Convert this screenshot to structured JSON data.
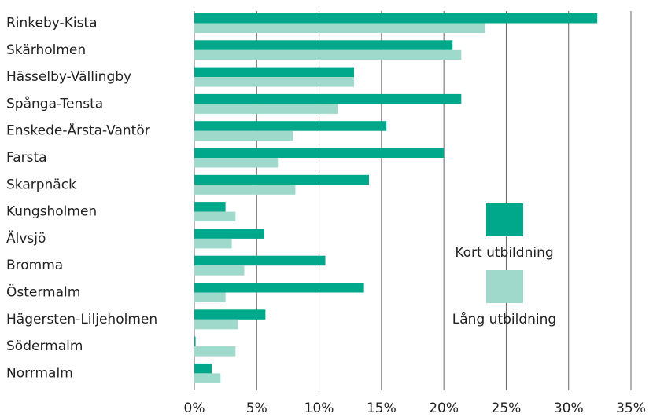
{
  "chart_data": {
    "type": "bar",
    "orientation": "horizontal",
    "categories": [
      "Rinkeby-Kista",
      "Skärholmen",
      "Hässelby-Vällingby",
      "Spånga-Tensta",
      "Enskede-Årsta-Vantör",
      "Farsta",
      "Skarpnäck",
      "Kungsholmen",
      "Älvsjö",
      "Bromma",
      "Östermalm",
      "Hägersten-Liljeholmen",
      "Södermalm",
      "Norrmalm"
    ],
    "series": [
      {
        "name": "Kort utbildning",
        "color": "#00a88b",
        "values": [
          32.3,
          20.7,
          12.8,
          21.4,
          15.4,
          20.0,
          14.0,
          2.5,
          5.6,
          10.5,
          13.6,
          5.7,
          0.1,
          1.4
        ]
      },
      {
        "name": "Lång utbildning",
        "color": "#9fd9cc",
        "values": [
          23.3,
          21.4,
          12.8,
          11.5,
          7.9,
          6.7,
          8.1,
          3.3,
          3.0,
          4.0,
          2.5,
          3.5,
          3.3,
          2.1
        ]
      }
    ],
    "xlim": [
      0,
      35
    ],
    "xticks": [
      {
        "value": 0,
        "label": "0%"
      },
      {
        "value": 5,
        "label": "5%"
      },
      {
        "value": 10,
        "label": "10%"
      },
      {
        "value": 15,
        "label": "15%"
      },
      {
        "value": 20,
        "label": "20%"
      },
      {
        "value": 25,
        "label": "25%"
      },
      {
        "value": 30,
        "label": "30%"
      },
      {
        "value": 35,
        "label": "35%"
      }
    ],
    "grid": true,
    "legend": "right"
  }
}
